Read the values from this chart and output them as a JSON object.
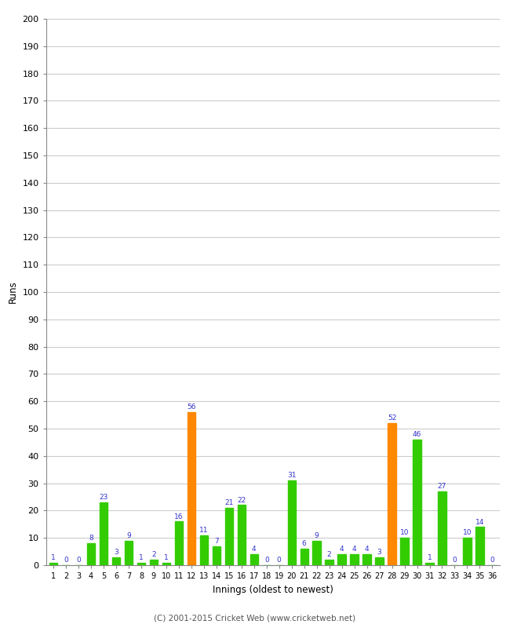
{
  "innings": [
    1,
    2,
    3,
    4,
    5,
    6,
    7,
    8,
    9,
    10,
    11,
    12,
    13,
    14,
    15,
    16,
    17,
    18,
    19,
    20,
    21,
    22,
    23,
    24,
    25,
    26,
    27,
    28,
    29,
    30,
    31,
    32,
    33,
    34,
    35,
    36
  ],
  "values": [
    1,
    0,
    0,
    8,
    23,
    3,
    9,
    1,
    2,
    1,
    16,
    56,
    11,
    7,
    21,
    22,
    4,
    0,
    0,
    31,
    6,
    9,
    2,
    4,
    4,
    4,
    3,
    52,
    10,
    46,
    1,
    27,
    0,
    10,
    14,
    0
  ],
  "colors": [
    "#33cc00",
    "#33cc00",
    "#33cc00",
    "#33cc00",
    "#33cc00",
    "#33cc00",
    "#33cc00",
    "#33cc00",
    "#33cc00",
    "#33cc00",
    "#33cc00",
    "#ff8800",
    "#33cc00",
    "#33cc00",
    "#33cc00",
    "#33cc00",
    "#33cc00",
    "#33cc00",
    "#33cc00",
    "#33cc00",
    "#33cc00",
    "#33cc00",
    "#33cc00",
    "#33cc00",
    "#33cc00",
    "#33cc00",
    "#33cc00",
    "#ff8800",
    "#33cc00",
    "#33cc00",
    "#33cc00",
    "#33cc00",
    "#33cc00",
    "#33cc00",
    "#33cc00",
    "#33cc00"
  ],
  "xlabel": "Innings (oldest to newest)",
  "ylabel": "Runs",
  "ylim": [
    0,
    200
  ],
  "yticks": [
    0,
    10,
    20,
    30,
    40,
    50,
    60,
    70,
    80,
    90,
    100,
    110,
    120,
    130,
    140,
    150,
    160,
    170,
    180,
    190,
    200
  ],
  "bg_color": "#ffffff",
  "grid_color": "#cccccc",
  "label_color": "#3333cc",
  "bar_width": 0.65,
  "footer": "(C) 2001-2015 Cricket Web (www.cricketweb.net)"
}
